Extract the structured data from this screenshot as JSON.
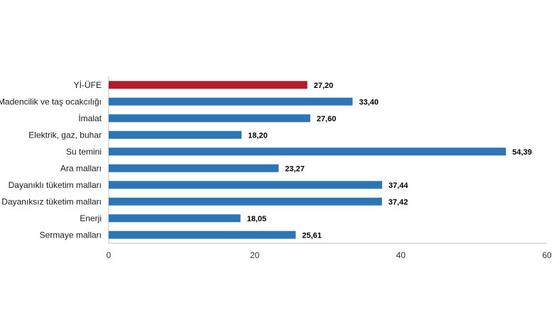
{
  "chart_data": {
    "type": "bar",
    "orientation": "horizontal",
    "categories": [
      "Yİ-ÜFE",
      "Madencilik ve taş ocakcılığı",
      "İmalat",
      "Elektrik, gaz, buhar",
      "Su temini",
      "Ara malları",
      "Dayanıklı tüketim malları",
      "Dayanıksız tüketim malları",
      "Enerji",
      "Sermaye malları"
    ],
    "values": [
      27.2,
      33.4,
      27.6,
      18.2,
      54.39,
      23.27,
      37.44,
      37.42,
      18.05,
      25.61
    ],
    "value_labels": [
      "27,20",
      "33,40",
      "27,60",
      "18,20",
      "54,39",
      "23,27",
      "37,44",
      "37,42",
      "18,05",
      "25,61"
    ],
    "highlight": [
      true,
      false,
      false,
      false,
      false,
      false,
      false,
      false,
      false,
      false
    ],
    "xlim": [
      0,
      60
    ],
    "x_ticks": [
      0,
      20,
      40,
      60
    ],
    "grid": false,
    "title": "",
    "xlabel": "",
    "ylabel": ""
  },
  "colors": {
    "highlight": "#b11e2a",
    "bar": "#2e75b6",
    "axis": "#bfbfbf"
  }
}
